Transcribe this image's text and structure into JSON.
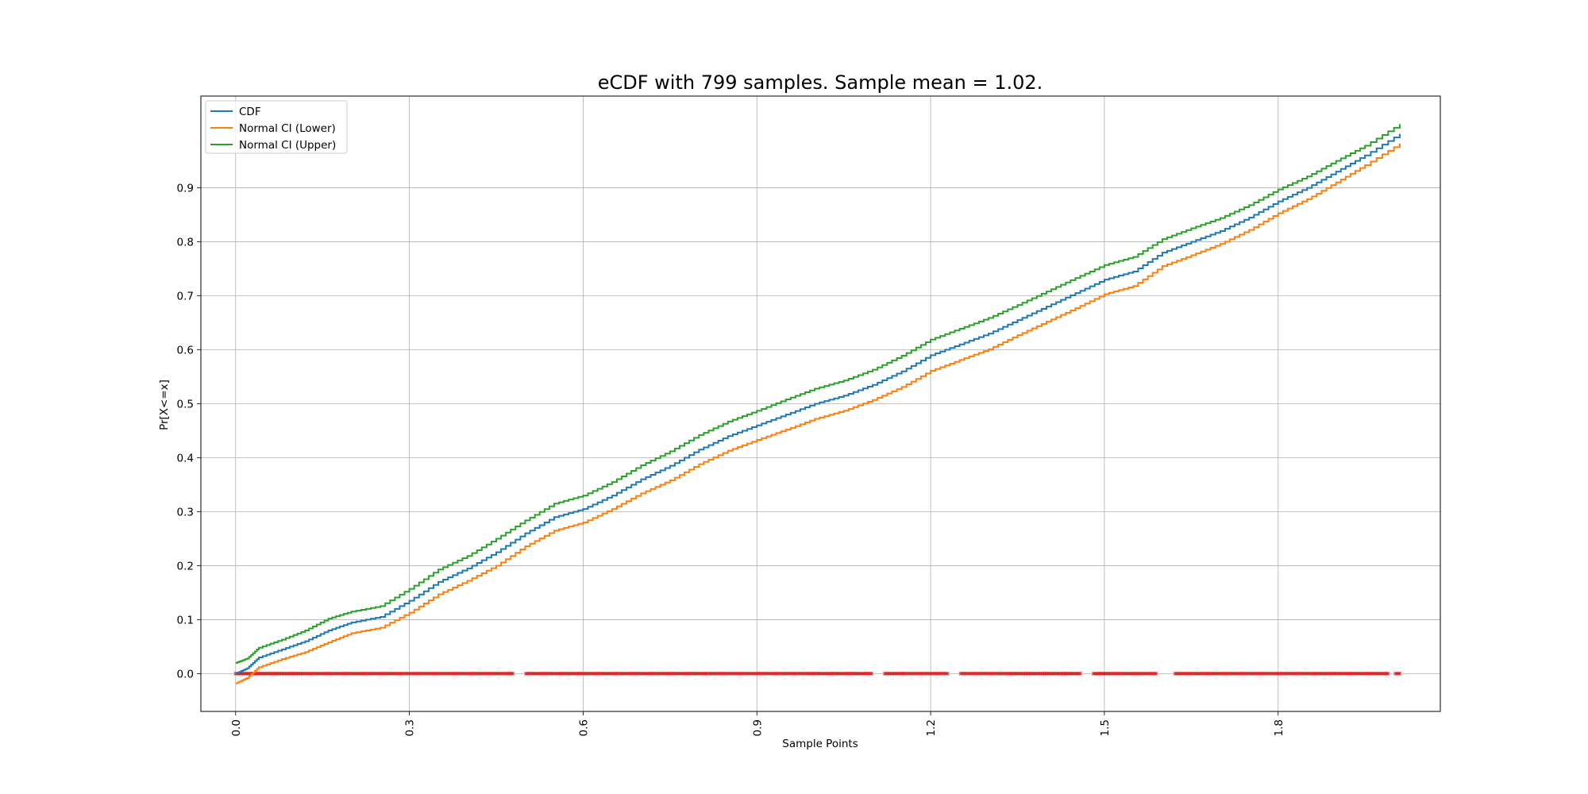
{
  "chart_data": {
    "type": "line",
    "title": "eCDF with 799 samples. Sample mean = 1.02.",
    "xlabel": "Sample Points",
    "ylabel": "Pr[X<=x]",
    "xlim": [
      -0.06,
      2.08
    ],
    "ylim": [
      -0.07,
      1.07
    ],
    "xticks": [
      0.0,
      0.3,
      0.6,
      0.9,
      1.2,
      1.5,
      1.8
    ],
    "xtick_labels": [
      "0.0",
      "0.3",
      "0.6",
      "0.9",
      "1.2",
      "1.5",
      "1.8"
    ],
    "yticks": [
      0.0,
      0.1,
      0.2,
      0.3,
      0.4,
      0.5,
      0.6,
      0.7,
      0.8,
      0.9
    ],
    "ytick_labels": [
      "0.0",
      "0.1",
      "0.2",
      "0.3",
      "0.4",
      "0.5",
      "0.6",
      "0.7",
      "0.8",
      "0.9"
    ],
    "grid": true,
    "legend_position": "top-left",
    "x_range": [
      0.0,
      2.01
    ],
    "sample_count": 799,
    "series": [
      {
        "name": "CDF",
        "color": "#1f77b4",
        "x": [
          0.0,
          0.02,
          0.04,
          0.08,
          0.12,
          0.16,
          0.2,
          0.25,
          0.3,
          0.35,
          0.4,
          0.45,
          0.5,
          0.55,
          0.6,
          0.65,
          0.7,
          0.75,
          0.8,
          0.85,
          0.9,
          0.95,
          1.0,
          1.05,
          1.1,
          1.15,
          1.2,
          1.25,
          1.3,
          1.35,
          1.4,
          1.45,
          1.5,
          1.55,
          1.6,
          1.65,
          1.7,
          1.75,
          1.8,
          1.85,
          1.9,
          1.95,
          2.01
        ],
        "y": [
          0.0,
          0.01,
          0.03,
          0.045,
          0.06,
          0.08,
          0.095,
          0.105,
          0.135,
          0.17,
          0.195,
          0.225,
          0.26,
          0.29,
          0.305,
          0.33,
          0.36,
          0.385,
          0.415,
          0.44,
          0.46,
          0.48,
          0.5,
          0.515,
          0.535,
          0.56,
          0.59,
          0.61,
          0.63,
          0.655,
          0.68,
          0.705,
          0.73,
          0.745,
          0.78,
          0.8,
          0.82,
          0.845,
          0.875,
          0.9,
          0.93,
          0.96,
          1.0
        ]
      },
      {
        "name": "Normal CI (Lower)",
        "color": "#ff7f0e",
        "x": [
          0.0,
          0.02,
          0.04,
          0.08,
          0.12,
          0.16,
          0.2,
          0.25,
          0.3,
          0.35,
          0.4,
          0.45,
          0.5,
          0.55,
          0.6,
          0.65,
          0.7,
          0.75,
          0.8,
          0.85,
          0.9,
          0.95,
          1.0,
          1.05,
          1.1,
          1.15,
          1.2,
          1.25,
          1.3,
          1.35,
          1.4,
          1.45,
          1.5,
          1.55,
          1.6,
          1.65,
          1.7,
          1.75,
          1.8,
          1.85,
          1.9,
          1.95,
          2.01
        ],
        "y": [
          -0.018,
          -0.008,
          0.012,
          0.027,
          0.04,
          0.058,
          0.075,
          0.085,
          0.113,
          0.147,
          0.172,
          0.2,
          0.236,
          0.265,
          0.28,
          0.305,
          0.334,
          0.358,
          0.388,
          0.413,
          0.433,
          0.452,
          0.472,
          0.487,
          0.507,
          0.531,
          0.561,
          0.581,
          0.601,
          0.627,
          0.652,
          0.677,
          0.703,
          0.718,
          0.755,
          0.775,
          0.796,
          0.822,
          0.853,
          0.879,
          0.91,
          0.942,
          0.982
        ]
      },
      {
        "name": "Normal CI (Upper)",
        "color": "#2ca02c",
        "x": [
          0.0,
          0.02,
          0.04,
          0.08,
          0.12,
          0.16,
          0.2,
          0.25,
          0.3,
          0.35,
          0.4,
          0.45,
          0.5,
          0.55,
          0.6,
          0.65,
          0.7,
          0.75,
          0.8,
          0.85,
          0.9,
          0.95,
          1.0,
          1.05,
          1.1,
          1.15,
          1.2,
          1.25,
          1.3,
          1.35,
          1.4,
          1.45,
          1.5,
          1.55,
          1.6,
          1.65,
          1.7,
          1.75,
          1.8,
          1.85,
          1.9,
          1.95,
          2.01
        ],
        "y": [
          0.02,
          0.028,
          0.048,
          0.063,
          0.08,
          0.102,
          0.115,
          0.125,
          0.157,
          0.193,
          0.218,
          0.25,
          0.284,
          0.315,
          0.33,
          0.355,
          0.386,
          0.412,
          0.442,
          0.467,
          0.487,
          0.508,
          0.528,
          0.543,
          0.563,
          0.589,
          0.619,
          0.639,
          0.659,
          0.683,
          0.708,
          0.733,
          0.757,
          0.772,
          0.805,
          0.825,
          0.844,
          0.868,
          0.897,
          0.921,
          0.95,
          0.978,
          1.018
        ]
      }
    ],
    "rug": {
      "color": "#d62728",
      "y": 0.0,
      "marker": "x",
      "x_gaps": [
        [
          0.48,
          0.5
        ],
        [
          1.1,
          1.12
        ],
        [
          1.23,
          1.25
        ],
        [
          1.46,
          1.48
        ],
        [
          1.59,
          1.62
        ],
        [
          1.99,
          2.0
        ]
      ]
    }
  }
}
